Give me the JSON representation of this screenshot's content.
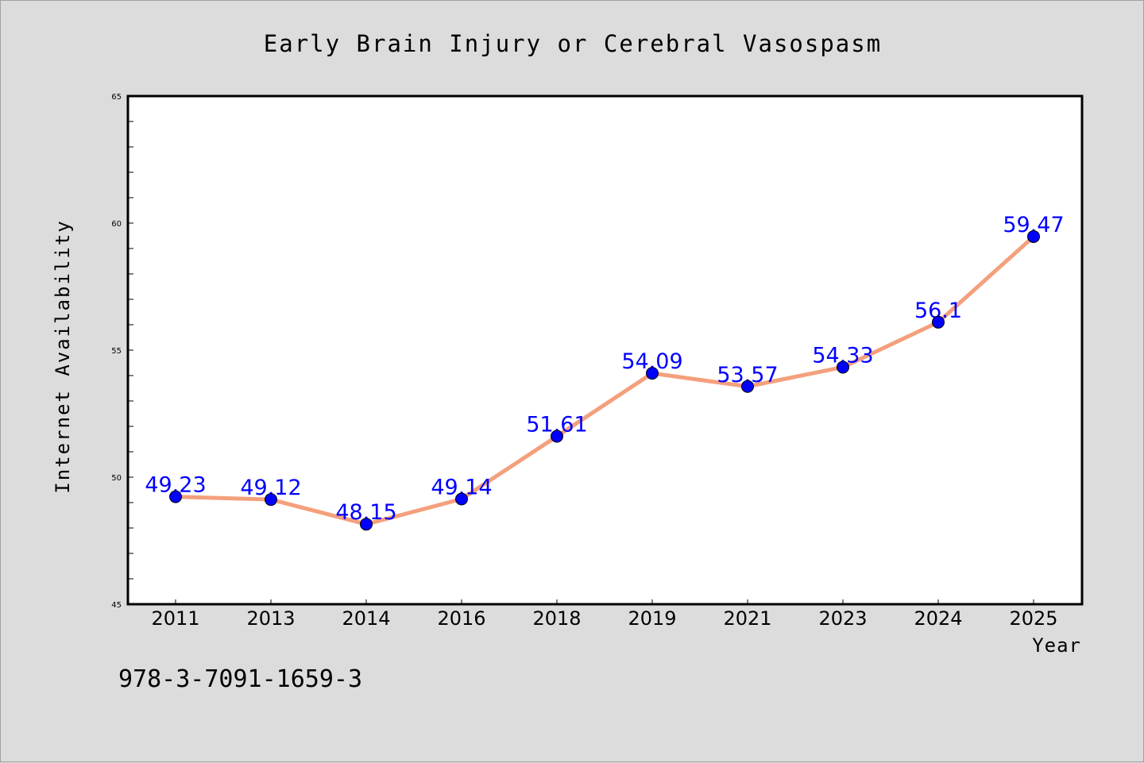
{
  "chart_data": {
    "type": "line",
    "title": "Early Brain Injury or Cerebral Vasospasm",
    "xlabel": "Year",
    "ylabel": "Internet Availability",
    "categories": [
      "2011",
      "2013",
      "2014",
      "2016",
      "2018",
      "2019",
      "2021",
      "2023",
      "2024",
      "2025"
    ],
    "series": [
      {
        "values": [
          49.23,
          49.12,
          48.15,
          49.14,
          51.61,
          54.09,
          53.57,
          54.33,
          56.1,
          59.47
        ],
        "labels": [
          "49.23",
          "49.12",
          "48.15",
          "49.14",
          "51.61",
          "54.09",
          "53.57",
          "54.33",
          "56.1",
          "59.47"
        ],
        "line_color": "#f4a07c",
        "marker_color": "#0000ff"
      }
    ],
    "ylim": [
      45,
      65
    ],
    "yticks": [
      45,
      50,
      55,
      60,
      65
    ],
    "grid": false,
    "label_color": "#0000ff"
  },
  "footnote": "978-3-7091-1659-3"
}
